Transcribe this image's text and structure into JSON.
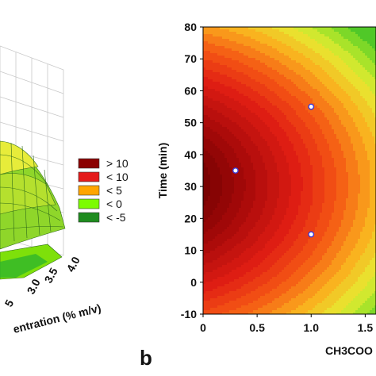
{
  "colors": {
    "gt10": "#8b0000",
    "lt10": "#e41a1a",
    "lt5": "#ffa500",
    "lt0": "#7cfc00",
    "ltm5": "#1e8c1e"
  },
  "left_panel": {
    "axis_label": "entration (% m/v)",
    "ticks": [
      "3.0",
      "3.5",
      "4.0"
    ],
    "partial_tick": "5",
    "legend": [
      {
        "label": "> 10",
        "color_key": "gt10"
      },
      {
        "label": "< 10",
        "color_key": "lt10"
      },
      {
        "label": "< 5",
        "color_key": "lt5"
      },
      {
        "label": "< 0",
        "color_key": "lt0"
      },
      {
        "label": "< -5",
        "color_key": "ltm5"
      }
    ]
  },
  "panel_label": "b",
  "chart_data": {
    "type": "heatmap",
    "ylabel": "Time (min)",
    "xlabel": "CH3COO",
    "xlim": [
      0,
      1.6
    ],
    "ylim": [
      -10,
      80
    ],
    "x_ticks": [
      "0",
      "0.5",
      "1.0",
      "1.5"
    ],
    "y_ticks": [
      "80",
      "70",
      "60",
      "50",
      "40",
      "30",
      "20",
      "10",
      "0",
      "-10"
    ],
    "design_points": [
      {
        "x": 0.3,
        "y": 35
      },
      {
        "x": 1.0,
        "y": 55
      },
      {
        "x": 1.0,
        "y": 15
      }
    ]
  }
}
